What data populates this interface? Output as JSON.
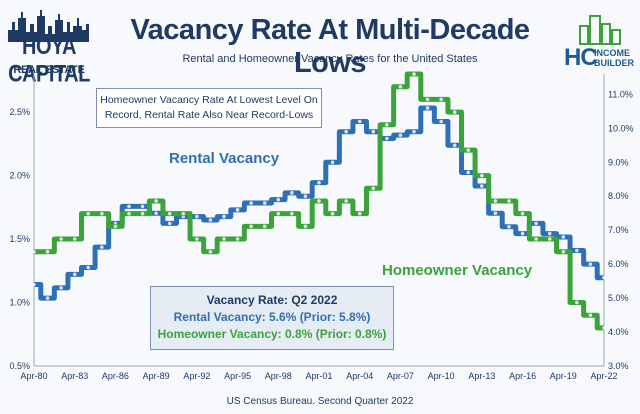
{
  "header": {
    "title": "Vacancy Rate At Multi-Decade Lows",
    "subtitle": "Rental and Homeowner Vacancy Rates for the United States"
  },
  "logo_left": {
    "name": "HOYA CAPITAL",
    "sub": "REAL ESTATE"
  },
  "logo_right": {
    "mark": "HC",
    "line1": "INCOME",
    "line2": "BUILDER"
  },
  "callout": {
    "line1": "Homeowner Vacancy Rate At Lowest Level On",
    "line2": "Record, Rental Rate Also Near Record-Lows"
  },
  "series_labels": {
    "rental": "Rental Vacancy",
    "homeowner": "Homeowner Vacancy"
  },
  "infobox": {
    "heading": "Vacancy Rate: Q2 2022",
    "rental": "Rental Vacancy: 5.6% (Prior: 5.8%)",
    "homeowner": "Homeowner Vacancy: 0.8% (Prior: 0.8%)"
  },
  "source": "US Census Bureau. Second Quarter 2022",
  "colors": {
    "rental": "#2f6fb5",
    "homeowner": "#3aa33a",
    "navy": "#1f3b63"
  },
  "chart_data": {
    "type": "line",
    "x": [
      1980,
      1981,
      1982,
      1983,
      1984,
      1985,
      1986,
      1987,
      1988,
      1989,
      1990,
      1991,
      1992,
      1993,
      1994,
      1995,
      1996,
      1997,
      1998,
      1999,
      2000,
      2001,
      2002,
      2003,
      2004,
      2005,
      2006,
      2007,
      2008,
      2009,
      2010,
      2011,
      2012,
      2013,
      2014,
      2015,
      2016,
      2017,
      2018,
      2019,
      2020,
      2021,
      2022
    ],
    "x_ticks": [
      "Apr-80",
      "Apr-83",
      "Apr-86",
      "Apr-89",
      "Apr-92",
      "Apr-95",
      "Apr-98",
      "Apr-01",
      "Apr-04",
      "Apr-07",
      "Apr-10",
      "Apr-13",
      "Apr-16",
      "Apr-19",
      "Apr-22"
    ],
    "x_tick_years": [
      1980,
      1983,
      1986,
      1989,
      1992,
      1995,
      1998,
      2001,
      2004,
      2007,
      2010,
      2013,
      2016,
      2019,
      2022
    ],
    "left_axis": {
      "ylim": [
        0.5,
        2.8
      ],
      "ticks": [
        "0.5%",
        "1.0%",
        "1.5%",
        "2.0%",
        "2.5%"
      ],
      "tick_values": [
        0.5,
        1.0,
        1.5,
        2.0,
        2.5
      ]
    },
    "right_axis": {
      "ylim": [
        3.0,
        11.6
      ],
      "ticks": [
        "3.0%",
        "4.0%",
        "5.0%",
        "6.0%",
        "7.0%",
        "8.0%",
        "9.0%",
        "10.0%",
        "11.0%"
      ],
      "tick_values": [
        3,
        4,
        5,
        6,
        7,
        8,
        9,
        10,
        11
      ]
    },
    "series": [
      {
        "name": "Rental Vacancy",
        "axis": "right",
        "values": [
          5.4,
          5.0,
          5.3,
          5.7,
          5.9,
          6.5,
          7.2,
          7.7,
          7.7,
          7.5,
          7.2,
          7.4,
          7.4,
          7.3,
          7.4,
          7.6,
          7.8,
          7.8,
          7.9,
          8.1,
          8.0,
          8.4,
          9.0,
          9.9,
          10.2,
          9.9,
          9.7,
          9.8,
          9.9,
          10.6,
          10.2,
          9.5,
          8.7,
          8.3,
          7.5,
          7.1,
          6.9,
          7.2,
          6.9,
          6.8,
          6.4,
          6.0,
          5.6
        ]
      },
      {
        "name": "Homeowner Vacancy",
        "axis": "left",
        "values": [
          1.4,
          1.4,
          1.5,
          1.5,
          1.7,
          1.7,
          1.6,
          1.7,
          1.7,
          1.8,
          1.7,
          1.7,
          1.5,
          1.4,
          1.5,
          1.5,
          1.6,
          1.6,
          1.7,
          1.7,
          1.6,
          1.8,
          1.7,
          1.8,
          1.7,
          1.9,
          2.4,
          2.7,
          2.8,
          2.6,
          2.6,
          2.5,
          2.2,
          2.0,
          1.8,
          1.8,
          1.7,
          1.5,
          1.5,
          1.4,
          1.0,
          0.9,
          0.8
        ]
      }
    ]
  }
}
